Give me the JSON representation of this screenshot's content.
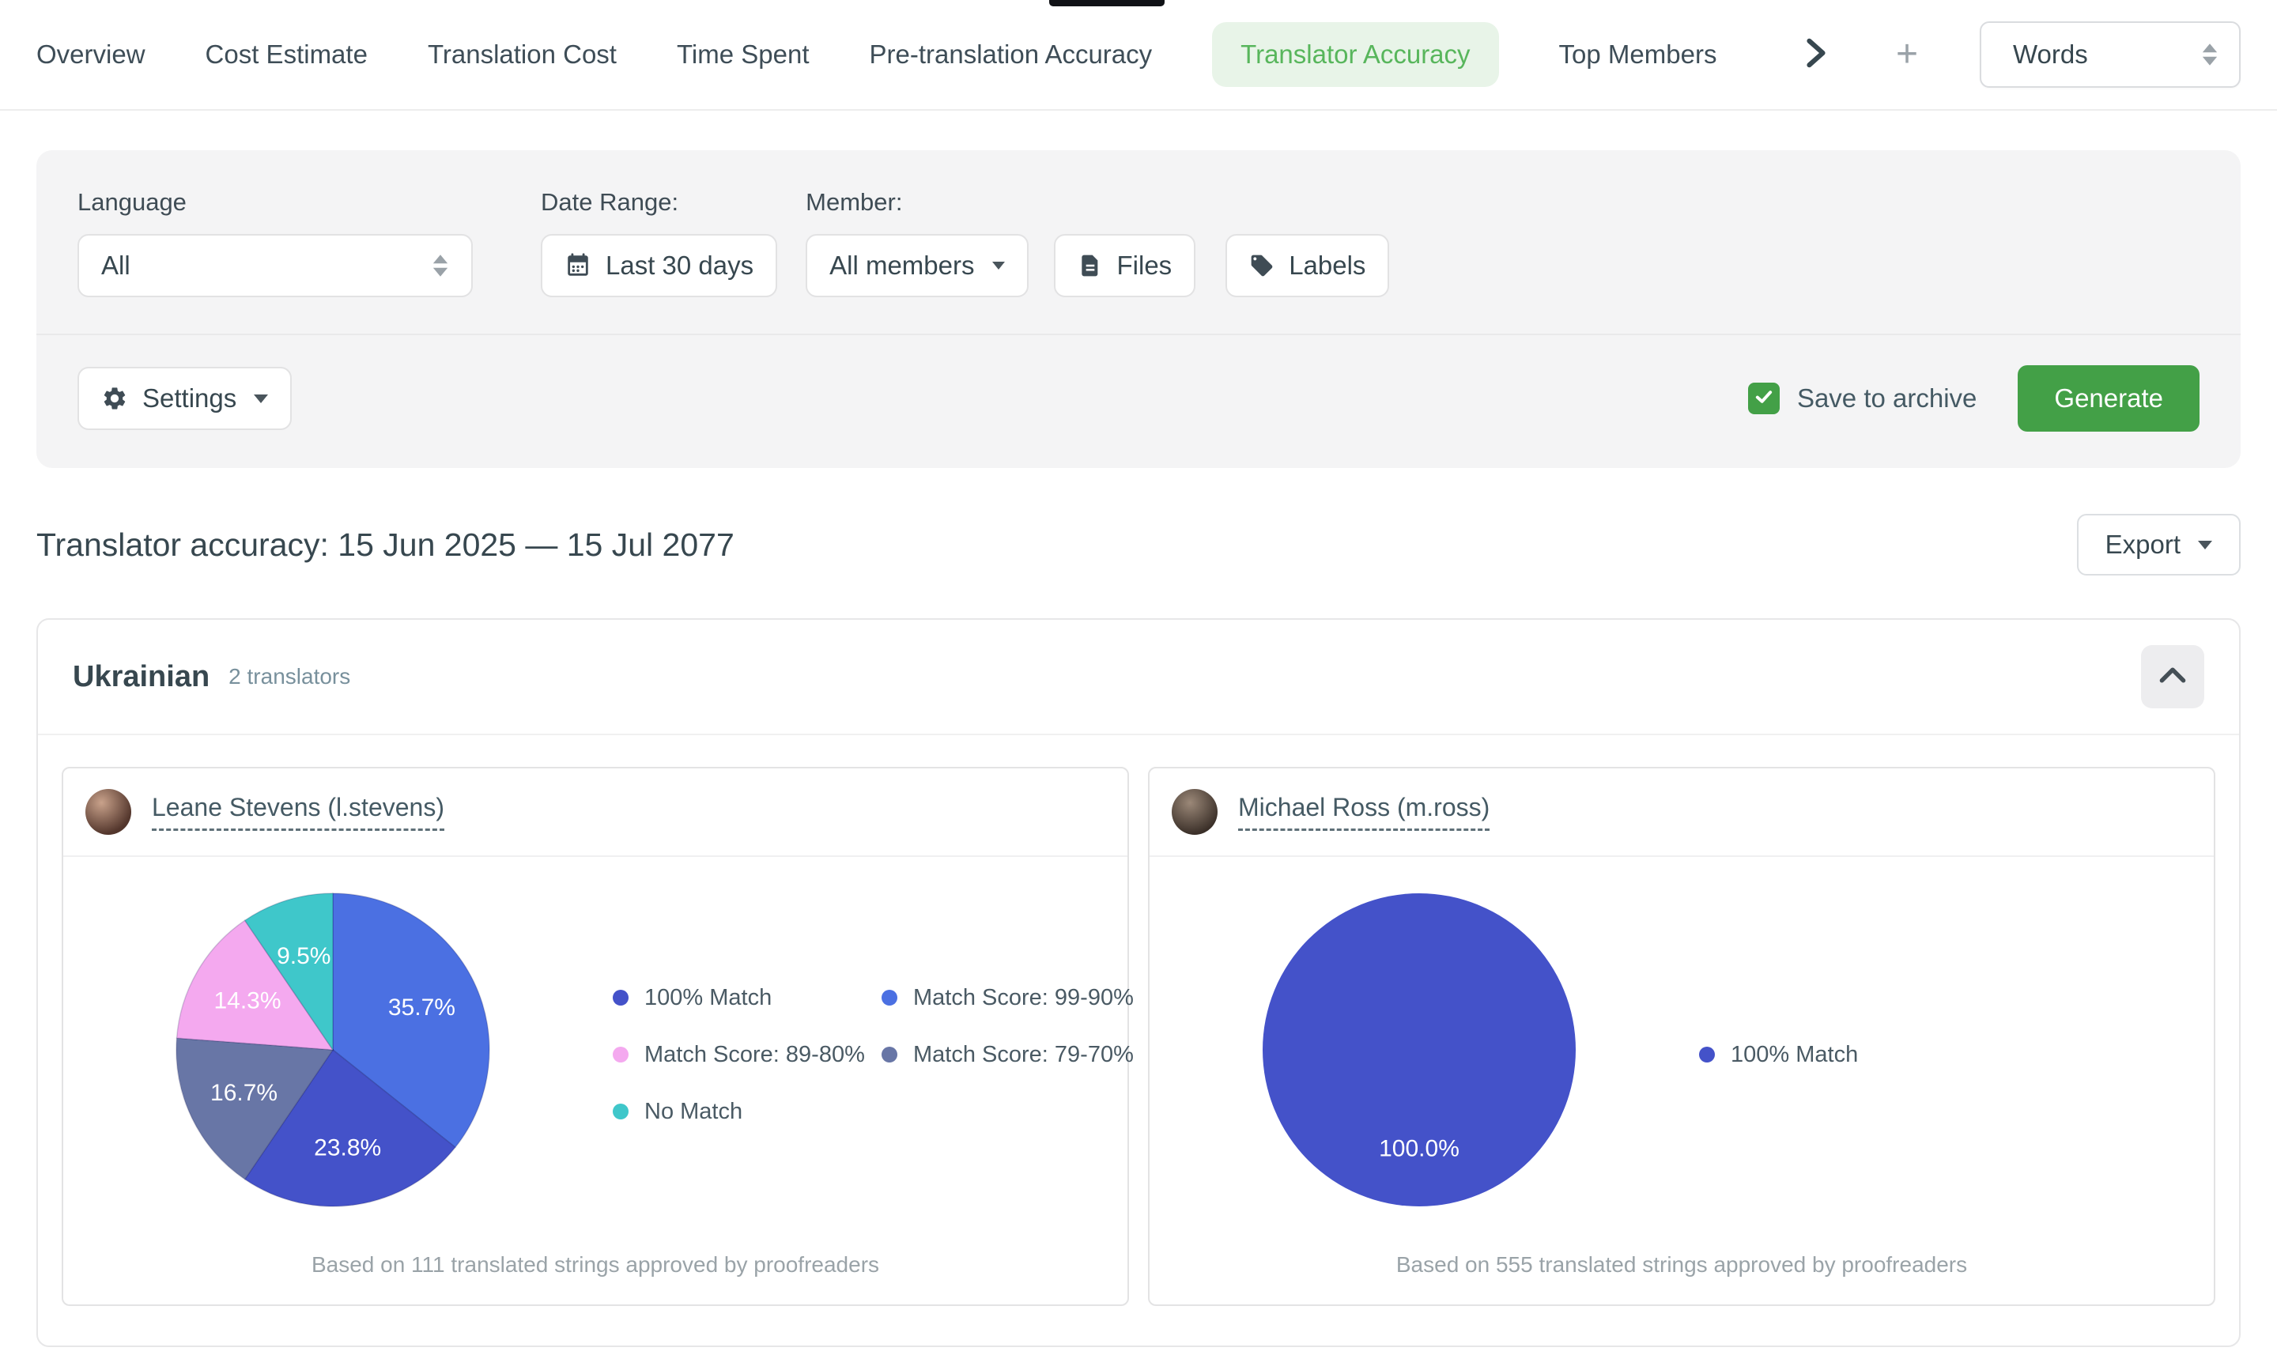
{
  "nav": {
    "tabs": [
      {
        "label": "Overview",
        "active": false
      },
      {
        "label": "Cost Estimate",
        "active": false
      },
      {
        "label": "Translation Cost",
        "active": false
      },
      {
        "label": "Time Spent",
        "active": false
      },
      {
        "label": "Pre-translation Accuracy",
        "active": false
      },
      {
        "label": "Translator Accuracy",
        "active": true
      },
      {
        "label": "Top Members",
        "active": false
      }
    ],
    "add_label": "+",
    "unit_select": {
      "value": "Words"
    }
  },
  "filters": {
    "language_label": "Language",
    "language_value": "All",
    "date_range_label": "Date Range:",
    "date_range_value": "Last 30 days",
    "member_label": "Member:",
    "member_value": "All members",
    "files_label": "Files",
    "labels_label": "Labels",
    "settings_label": "Settings",
    "save_to_archive_label": "Save to archive",
    "save_to_archive_checked": true,
    "generate_label": "Generate"
  },
  "report": {
    "title": "Translator accuracy: 15 Jun 2025 — 15 Jul 2077",
    "export_label": "Export"
  },
  "language_section": {
    "name": "Ukrainian",
    "translators_count_label": "2 translators"
  },
  "colors": {
    "accent_green": "#43a047",
    "active_tab_green": "#58b65c",
    "active_tab_bg": "#e8f4e8",
    "match_100": "#4452c9",
    "match_99_90": "#4b70e2",
    "match_89_80": "#f4a9ef",
    "match_79_70": "#6876a6",
    "no_match": "#3fc7ca"
  },
  "icons": [
    "chevron-right-icon",
    "plus-icon",
    "sort-arrows-icon",
    "calendar-icon",
    "file-icon",
    "tag-icon",
    "gear-icon",
    "caret-down-icon",
    "check-icon",
    "chevron-up-icon"
  ],
  "chart_data": [
    {
      "type": "pie",
      "translator": "Leane Stevens (l.stevens)",
      "slices": [
        {
          "label": "Match Score: 99-90%",
          "value": 35.7,
          "display": "35.7%",
          "color": "#4b70e2"
        },
        {
          "label": "100% Match",
          "value": 23.8,
          "display": "23.8%",
          "color": "#4452c9"
        },
        {
          "label": "Match Score: 79-70%",
          "value": 16.7,
          "display": "16.7%",
          "color": "#6876a6"
        },
        {
          "label": "Match Score: 89-80%",
          "value": 14.3,
          "display": "14.3%",
          "color": "#f4a9ef"
        },
        {
          "label": "No Match",
          "value": 9.5,
          "display": "9.5%",
          "color": "#3fc7ca"
        }
      ],
      "start_angle_deg": 0,
      "direction": "clockwise",
      "legend": [
        {
          "label": "100% Match",
          "color": "#4452c9"
        },
        {
          "label": "Match Score: 99-90%",
          "color": "#4b70e2"
        },
        {
          "label": "Match Score: 89-80%",
          "color": "#f4a9ef"
        },
        {
          "label": "Match Score: 79-70%",
          "color": "#6876a6"
        },
        {
          "label": "No Match",
          "color": "#3fc7ca"
        }
      ],
      "footnote": "Based on 111 translated strings approved by proofreaders"
    },
    {
      "type": "pie",
      "translator": "Michael Ross (m.ross)",
      "slices": [
        {
          "label": "100% Match",
          "value": 100.0,
          "display": "100.0%",
          "color": "#4452c9"
        }
      ],
      "start_angle_deg": 0,
      "direction": "clockwise",
      "legend": [
        {
          "label": "100% Match",
          "color": "#4452c9"
        }
      ],
      "footnote": "Based on 555 translated strings approved by proofreaders"
    }
  ]
}
